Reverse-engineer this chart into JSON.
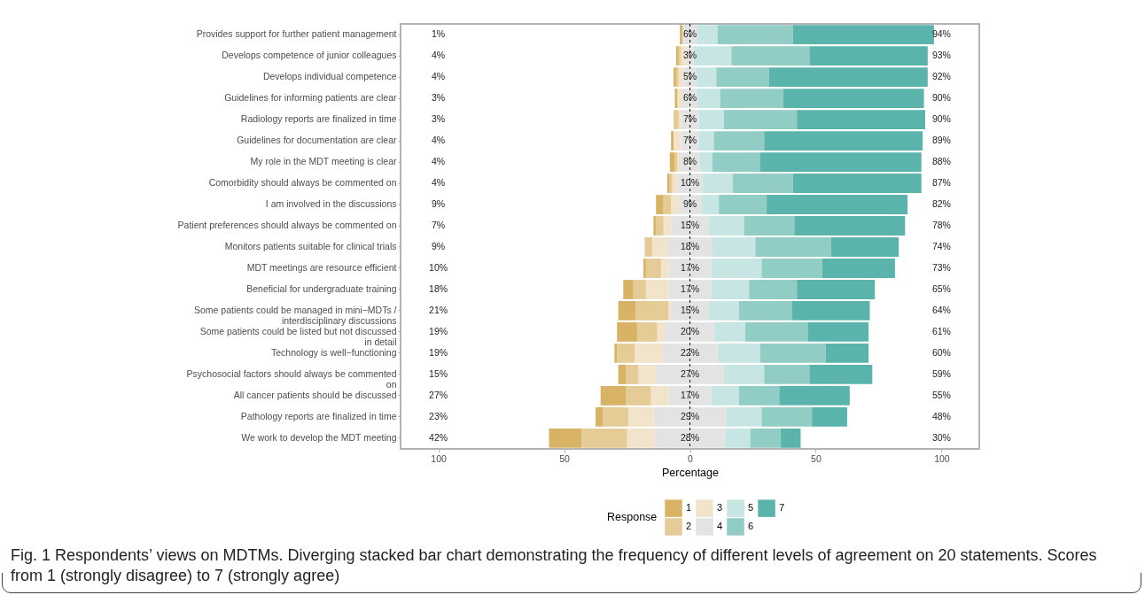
{
  "chart_data": {
    "type": "bar",
    "orientation": "horizontal",
    "stacked": true,
    "categories": [
      "Provides support for further patient management",
      "Develops competence of junior colleagues",
      "Develops individual competence",
      "Guidelines for informing patients are clear",
      "Radiology reports are finalized in time",
      "Guidelines for documentation are clear",
      "My role in the MDT meeting is clear",
      "Comorbidity should always be commented on",
      "I am involved in the discussions",
      "Patient preferences should always be commented on",
      "Monitors patients suitable for clinical trials",
      "MDT meetings are resource efficient",
      "Beneficial for undergraduate training",
      "Some patients could be managed in mini−MDTs /\ninterdisciplinary discussions",
      "Some patients could be listed but not discussed\nin detail",
      "Technology is well−functioning",
      "Psychosocial factors should always be commented\non",
      "All cancer patients should be discussed",
      "Pathology reports are finalized in time",
      "We work to develop the MDT meeting"
    ],
    "series": [
      {
        "color": "#e3e3e3",
        "values": [
          -3,
          -1.5,
          -2.5,
          -3,
          -3.5,
          -3.5,
          -4,
          -5,
          -4.5,
          -7.5,
          -9,
          -8.5,
          -8.5,
          -7.5,
          -10,
          -11,
          -13.5,
          -8.5,
          -14.5,
          -14
        ]
      },
      {
        "name": "3",
        "color": "#f2e4cb",
        "values": [
          0,
          -2,
          -2,
          -2,
          -1,
          -3,
          -1,
          -2,
          -3,
          -3,
          -6,
          -3,
          -9,
          -1,
          -3,
          -11,
          -7,
          -7,
          -10,
          -11
        ]
      },
      {
        "name": "2",
        "color": "#e5cb95",
        "values": [
          0,
          -1,
          -1,
          0,
          -2,
          0,
          -1,
          -1,
          -3,
          -3,
          -3,
          -6,
          -5,
          -13,
          -8,
          -7,
          -5,
          -10,
          -10,
          -18
        ]
      },
      {
        "name": "1",
        "color": "#d8b365",
        "values": [
          -1,
          -1,
          -1,
          -1,
          0,
          -1,
          -2,
          -1,
          -3,
          -1,
          0,
          -1,
          -4,
          -7,
          -8,
          -1,
          -3,
          -10,
          -3,
          -13
        ]
      },
      {
        "name": "4",
        "color": "#e3e3e3",
        "values": [
          3,
          1.5,
          2.5,
          3,
          3.5,
          3.5,
          4,
          5,
          4.5,
          7.5,
          9,
          8.5,
          8.5,
          7.5,
          10,
          11,
          13.5,
          8.5,
          14.5,
          14
        ]
      },
      {
        "name": "5",
        "color": "#c7e5e3",
        "values": [
          8,
          15,
          8,
          9,
          10,
          6,
          5,
          12,
          7,
          14,
          17,
          20,
          15,
          12,
          12,
          17,
          16,
          11,
          14,
          10
        ]
      },
      {
        "name": "6",
        "color": "#91cdc4",
        "values": [
          30,
          31,
          21,
          25,
          29,
          20,
          19,
          24,
          19,
          20,
          30,
          24,
          19,
          21,
          25,
          26,
          18,
          16,
          20,
          12
        ]
      },
      {
        "name": "7",
        "color": "#5ab4ac",
        "values": [
          56,
          47,
          63,
          56,
          51,
          63,
          64,
          51,
          56,
          44,
          27,
          29,
          31,
          31,
          24,
          17,
          25,
          28,
          14,
          8
        ]
      }
    ],
    "xlim": [
      -115,
      115
    ],
    "xticks": [
      {
        "value": -100,
        "label": "100"
      },
      {
        "value": -50,
        "label": "50"
      },
      0,
      50,
      100
    ],
    "xlabel": "Percentage",
    "legend_title": "Response",
    "legend": "bottom",
    "grid": false,
    "ref_lines": [
      {
        "axis": "x",
        "value": 0,
        "color": "#000000",
        "line_style": "dashed"
      }
    ],
    "annotations": [
      "1%",
      "6%",
      "94%",
      "4%",
      "3%",
      "93%",
      "4%",
      "5%",
      "92%",
      "3%",
      "6%",
      "90%",
      "3%",
      "7%",
      "90%",
      "4%",
      "7%",
      "89%",
      "4%",
      "8%",
      "88%",
      "4%",
      "10%",
      "87%",
      "9%",
      "9%",
      "82%",
      "7%",
      "15%",
      "78%",
      "9%",
      "18%",
      "74%",
      "10%",
      "17%",
      "73%",
      "18%",
      "17%",
      "65%",
      "21%",
      "15%",
      "64%",
      "19%",
      "20%",
      "61%",
      "19%",
      "22%",
      "60%",
      "15%",
      "27%",
      "59%",
      "27%",
      "17%",
      "55%",
      "23%",
      "29%",
      "48%",
      "42%",
      "28%",
      "30%",
      "Fig. 1 Respondents’ views on MDTMs. Diverging stacked bar chart demonstrating the frequency of different levels of agreement on 20 statements. Scores from 1 (strongly disagree) to 7 (strongly agree)"
    ]
  }
}
